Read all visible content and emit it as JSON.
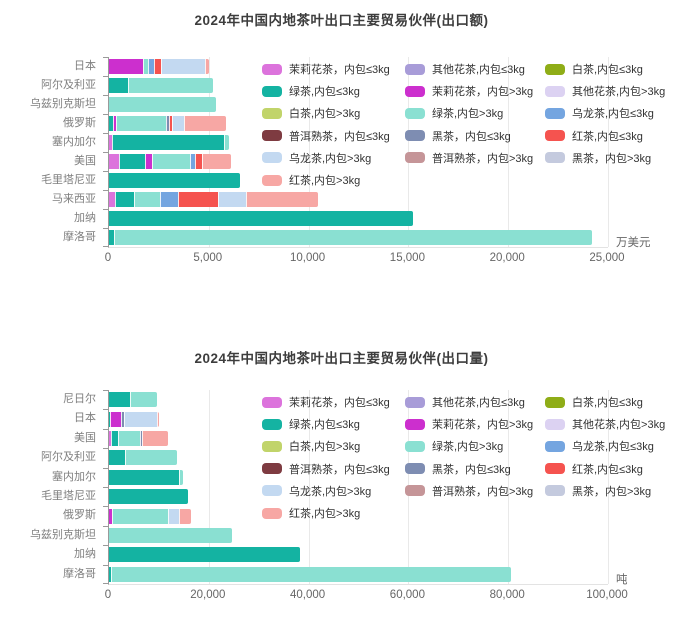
{
  "legend": {
    "items": [
      {
        "label": "茉莉花茶，内包≤3kg",
        "color": "#DC73DC"
      },
      {
        "label": "其他花茶,内包≤3kg",
        "color": "#A89CD8"
      },
      {
        "label": "白茶,内包≤3kg",
        "color": "#8FAD17"
      },
      {
        "label": "绿茶,内包≤3kg",
        "color": "#14B3A2"
      },
      {
        "label": "茉莉花茶，内包>3kg",
        "color": "#CC2FCE"
      },
      {
        "label": "其他花茶,内包>3kg",
        "color": "#DCD2F2"
      },
      {
        "label": "白茶,内包>3kg",
        "color": "#C1D46A"
      },
      {
        "label": "绿茶,内包>3kg",
        "color": "#8AE0D2"
      },
      {
        "label": "乌龙茶,内包≤3kg",
        "color": "#74A5E0"
      },
      {
        "label": "普洱熟茶，内包≤3kg",
        "color": "#7E3B41"
      },
      {
        "label": "黑茶，内包≤3kg",
        "color": "#7E8DB2"
      },
      {
        "label": "红茶,内包≤3kg",
        "color": "#F5534F"
      },
      {
        "label": "乌龙茶,内包>3kg",
        "color": "#C3D9F1"
      },
      {
        "label": "普洱熟茶，内包>3kg",
        "color": "#C59598"
      },
      {
        "label": "黑茶，内包>3kg",
        "color": "#C4CADE"
      },
      {
        "label": "红茶,内包>3kg",
        "color": "#F7A7A4"
      }
    ]
  },
  "chart_data": [
    {
      "type": "bar",
      "orientation": "horizontal",
      "stacked": true,
      "grid": true,
      "legend_position": "inside-top-right",
      "title": "2024年中国内地茶叶出口主要贸易伙伴(出口额)",
      "unit": "万美元",
      "xlim": [
        0,
        25000
      ],
      "x_tick_labels": [
        "0",
        "5,000",
        "10,000",
        "15,000",
        "20,000",
        "25,000"
      ],
      "categories": [
        "日本",
        "阿尔及利亚",
        "乌兹别克斯坦",
        "俄罗斯",
        "塞内加尔",
        "美国",
        "毛里塔尼亚",
        "马来西亚",
        "加纳",
        "摩洛哥"
      ],
      "bars": [
        {
          "category": "日本",
          "total": 5000,
          "segments": [
            {
              "series": "茉莉花茶，内包>3kg",
              "value": 1700
            },
            {
              "series": "绿茶,内包>3kg",
              "value": 250
            },
            {
              "series": "乌龙茶,内包≤3kg",
              "value": 320
            },
            {
              "series": "红茶,内包≤3kg",
              "value": 320
            },
            {
              "series": "乌龙茶,内包>3kg",
              "value": 2230
            },
            {
              "series": "红茶,内包>3kg",
              "value": 180
            }
          ]
        },
        {
          "category": "阿尔及利亚",
          "total": 5200,
          "segments": [
            {
              "series": "绿茶,内包≤3kg",
              "value": 950
            },
            {
              "series": "绿茶,内包>3kg",
              "value": 4250
            }
          ]
        },
        {
          "category": "乌兹别克斯坦",
          "total": 5350,
          "segments": [
            {
              "series": "绿茶,内包>3kg",
              "value": 5350
            }
          ]
        },
        {
          "category": "俄罗斯",
          "total": 5850,
          "segments": [
            {
              "series": "绿茶,内包≤3kg",
              "value": 200
            },
            {
              "series": "茉莉花茶，内包>3kg",
              "value": 150
            },
            {
              "series": "绿茶,内包>3kg",
              "value": 2500
            },
            {
              "series": "黑茶，内包≤3kg",
              "value": 150
            },
            {
              "series": "红茶,内包≤3kg",
              "value": 180
            },
            {
              "series": "乌龙茶,内包>3kg",
              "value": 580
            },
            {
              "series": "红茶,内包>3kg",
              "value": 2090
            }
          ]
        },
        {
          "category": "塞内加尔",
          "total": 6000,
          "segments": [
            {
              "series": "茉莉花茶，内包≤3kg",
              "value": 170
            },
            {
              "series": "绿茶,内包≤3kg",
              "value": 5600
            },
            {
              "series": "绿茶,内包>3kg",
              "value": 230
            }
          ]
        },
        {
          "category": "美国",
          "total": 6100,
          "segments": [
            {
              "series": "茉莉花茶，内包≤3kg",
              "value": 500
            },
            {
              "series": "绿茶,内包≤3kg",
              "value": 1300
            },
            {
              "series": "茉莉花茶，内包>3kg",
              "value": 370
            },
            {
              "series": "绿茶,内包>3kg",
              "value": 1900
            },
            {
              "series": "乌龙茶,内包≤3kg",
              "value": 250
            },
            {
              "series": "红茶,内包≤3kg",
              "value": 330
            },
            {
              "series": "红茶,内包>3kg",
              "value": 1450
            }
          ]
        },
        {
          "category": "毛里塔尼亚",
          "total": 6550,
          "segments": [
            {
              "series": "绿茶,内包≤3kg",
              "value": 6550
            }
          ]
        },
        {
          "category": "马来西亚",
          "total": 10450,
          "segments": [
            {
              "series": "茉莉花茶，内包≤3kg",
              "value": 300
            },
            {
              "series": "绿茶,内包≤3kg",
              "value": 950
            },
            {
              "series": "绿茶,内包>3kg",
              "value": 1300
            },
            {
              "series": "乌龙茶,内包≤3kg",
              "value": 930
            },
            {
              "series": "红茶,内包≤3kg",
              "value": 2000
            },
            {
              "series": "乌龙茶,内包>3kg",
              "value": 1400
            },
            {
              "series": "红茶,内包>3kg",
              "value": 3570
            }
          ]
        },
        {
          "category": "加纳",
          "total": 15250,
          "segments": [
            {
              "series": "绿茶,内包≤3kg",
              "value": 15250
            }
          ]
        },
        {
          "category": "摩洛哥",
          "total": 24200,
          "segments": [
            {
              "series": "绿茶,内包≤3kg",
              "value": 250
            },
            {
              "series": "绿茶,内包>3kg",
              "value": 23950
            }
          ]
        }
      ]
    },
    {
      "type": "bar",
      "orientation": "horizontal",
      "stacked": true,
      "grid": true,
      "legend_position": "inside-top-right",
      "title": "2024年中国内地茶叶出口主要贸易伙伴(出口量)",
      "unit": "吨",
      "xlim": [
        0,
        100000
      ],
      "x_tick_labels": [
        "0",
        "20,000",
        "40,000",
        "60,000",
        "80,000",
        "100,000"
      ],
      "categories": [
        "尼日尔",
        "日本",
        "美国",
        "阿尔及利亚",
        "塞内加尔",
        "毛里塔尼亚",
        "俄罗斯",
        "乌兹别克斯坦",
        "加纳",
        "摩洛哥"
      ],
      "bars": [
        {
          "category": "尼日尔",
          "total": 9700,
          "segments": [
            {
              "series": "绿茶,内包≤3kg",
              "value": 4300
            },
            {
              "series": "绿茶,内包>3kg",
              "value": 5400
            }
          ]
        },
        {
          "category": "日本",
          "total": 10050,
          "segments": [
            {
              "series": "绿茶,内包≤3kg",
              "value": 150
            },
            {
              "series": "茉莉花茶，内包>3kg",
              "value": 2350
            },
            {
              "series": "黑茶，内包≤3kg",
              "value": 600
            },
            {
              "series": "乌龙茶,内包>3kg",
              "value": 6450
            },
            {
              "series": "红茶,内包>3kg",
              "value": 500
            }
          ]
        },
        {
          "category": "美国",
          "total": 11850,
          "segments": [
            {
              "series": "茉莉花茶，内包≤3kg",
              "value": 450
            },
            {
              "series": "绿茶,内包≤3kg",
              "value": 1400
            },
            {
              "series": "绿茶,内包>3kg",
              "value": 4350
            },
            {
              "series": "黑茶，内包≤3kg",
              "value": 450
            },
            {
              "series": "红茶,内包>3kg",
              "value": 5200
            }
          ]
        },
        {
          "category": "阿尔及利亚",
          "total": 13700,
          "segments": [
            {
              "series": "绿茶,内包≤3kg",
              "value": 3200
            },
            {
              "series": "绿茶,内包>3kg",
              "value": 10500
            }
          ]
        },
        {
          "category": "塞内加尔",
          "total": 14850,
          "segments": [
            {
              "series": "绿茶,内包≤3kg",
              "value": 14100
            },
            {
              "series": "绿茶,内包>3kg",
              "value": 750
            }
          ]
        },
        {
          "category": "毛里塔尼亚",
          "total": 15800,
          "segments": [
            {
              "series": "绿茶,内包≤3kg",
              "value": 15800
            }
          ]
        },
        {
          "category": "俄罗斯",
          "total": 16520,
          "segments": [
            {
              "series": "茉莉花茶，内包>3kg",
              "value": 650
            },
            {
              "series": "绿茶,内包>3kg",
              "value": 11200
            },
            {
              "series": "乌龙茶,内包>3kg",
              "value": 2270
            },
            {
              "series": "红茶,内包>3kg",
              "value": 2400
            }
          ]
        },
        {
          "category": "乌兹别克斯坦",
          "total": 24700,
          "segments": [
            {
              "series": "绿茶,内包>3kg",
              "value": 24700
            }
          ]
        },
        {
          "category": "加纳",
          "total": 38300,
          "segments": [
            {
              "series": "绿茶,内包≤3kg",
              "value": 38300
            }
          ]
        },
        {
          "category": "摩洛哥",
          "total": 80500,
          "segments": [
            {
              "series": "绿茶,内包≤3kg",
              "value": 500
            },
            {
              "series": "绿茶,内包>3kg",
              "value": 80000
            }
          ]
        }
      ]
    }
  ]
}
